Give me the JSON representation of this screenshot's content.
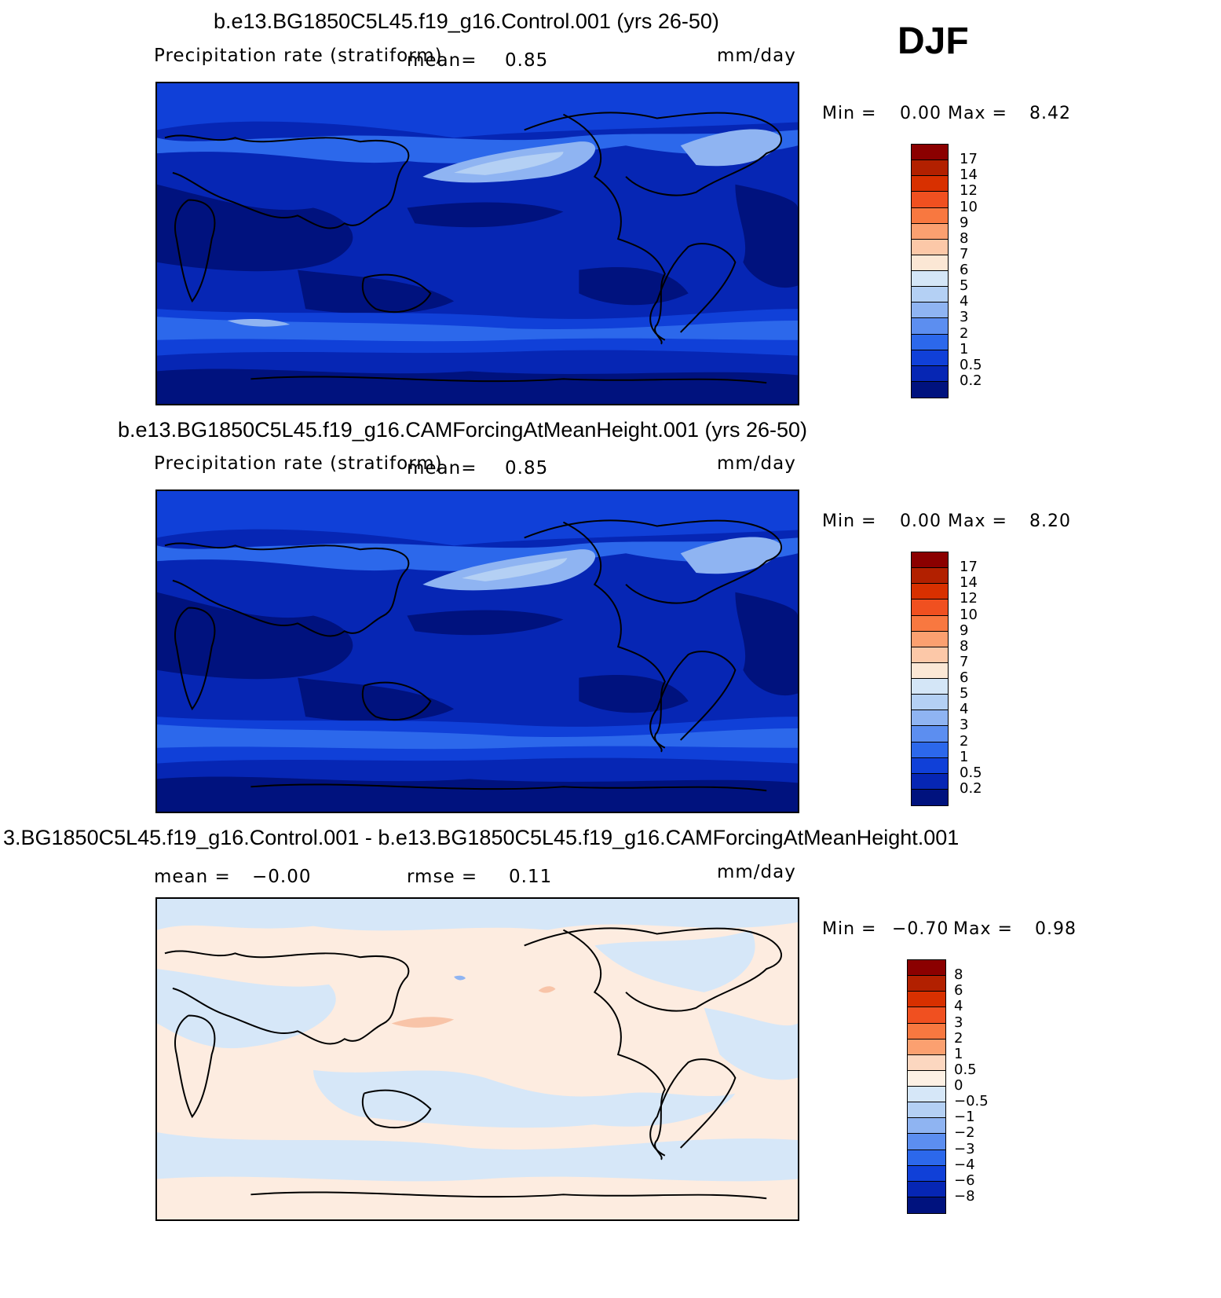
{
  "header": {
    "season": "DJF"
  },
  "panels": [
    {
      "title": "b.e13.BG1850C5L45.f19_g16.Control.001 (yrs 26-50)",
      "variable": "Precipitation rate (stratiform)",
      "mean_label": "mean=",
      "mean_value": "0.85",
      "units": "mm/day",
      "min_label": "Min =",
      "min_value": "0.00",
      "max_label": "Max =",
      "max_value": "8.42",
      "colorbar": {
        "labels": [
          "17",
          "14",
          "12",
          "10",
          "9",
          "8",
          "7",
          "6",
          "5",
          "4",
          "3",
          "2",
          "1",
          "0.5",
          "0.2"
        ],
        "colors": [
          "#8b0000",
          "#b22000",
          "#d83000",
          "#f05020",
          "#f87840",
          "#fba070",
          "#fcc8a8",
          "#fbe7d5",
          "#d4e6f7",
          "#b4d0f4",
          "#8fb4f2",
          "#5c8ef0",
          "#2c68eb",
          "#1040d8",
          "#0626b4",
          "#00127e"
        ]
      }
    },
    {
      "title": "b.e13.BG1850C5L45.f19_g16.CAMForcingAtMeanHeight.001 (yrs 26-50)",
      "variable": "Precipitation rate (stratiform)",
      "mean_label": "mean=",
      "mean_value": "0.85",
      "units": "mm/day",
      "min_label": "Min =",
      "min_value": "0.00",
      "max_label": "Max =",
      "max_value": "8.20",
      "colorbar": {
        "labels": [
          "17",
          "14",
          "12",
          "10",
          "9",
          "8",
          "7",
          "6",
          "5",
          "4",
          "3",
          "2",
          "1",
          "0.5",
          "0.2"
        ],
        "colors": [
          "#8b0000",
          "#b22000",
          "#d83000",
          "#f05020",
          "#f87840",
          "#fba070",
          "#fcc8a8",
          "#fbe7d5",
          "#d4e6f7",
          "#b4d0f4",
          "#8fb4f2",
          "#5c8ef0",
          "#2c68eb",
          "#1040d8",
          "#0626b4",
          "#00127e"
        ]
      }
    },
    {
      "title": "3.BG1850C5L45.f19_g16.Control.001 - b.e13.BG1850C5L45.f19_g16.CAMForcingAtMeanHeight.001",
      "mean_label": "mean =",
      "mean_value": "−0.00",
      "rmse_label": "rmse =",
      "rmse_value": "0.11",
      "units": "mm/day",
      "min_label": "Min =",
      "min_value": "−0.70",
      "max_label": "Max =",
      "max_value": "0.98",
      "colorbar": {
        "labels": [
          "8",
          "6",
          "4",
          "3",
          "2",
          "1",
          "0.5",
          "0",
          "−0.5",
          "−1",
          "−2",
          "−3",
          "−4",
          "−6",
          "−8"
        ],
        "colors": [
          "#8b0000",
          "#b22000",
          "#d83000",
          "#f05020",
          "#f87840",
          "#fba070",
          "#fcd7c0",
          "#fdf0e4",
          "#d6e7f8",
          "#b4d0f4",
          "#8fb4f2",
          "#5c8ef0",
          "#2c68eb",
          "#1040d8",
          "#0626b4",
          "#00127e"
        ]
      }
    }
  ],
  "colors": {
    "precip_deep": "#00127e",
    "precip_mid": "#1040d8",
    "precip_light": "#2c68eb",
    "precip_pale": "#8fb4f2",
    "diff_pos": "#fce6d6",
    "diff_neg": "#d6e7f8"
  }
}
